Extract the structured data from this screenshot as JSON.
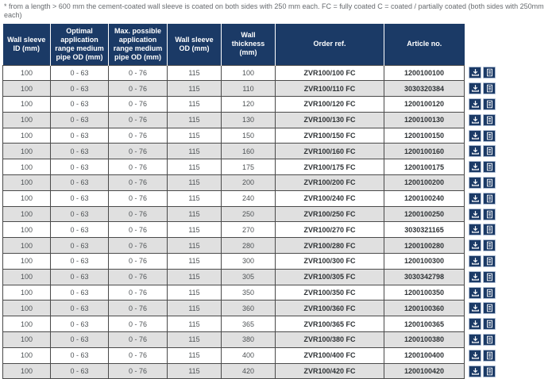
{
  "note": "* from a length > 600 mm the cement-coated wall sleeve is coated on both sides with 250 mm each. FC = fully coated C = coated / partially coated (both sides with 250mm each)",
  "colors": {
    "header_bg": "#1b3a66",
    "row_alt_bg": "#e0e0e0",
    "row_bg": "#ffffff",
    "border": "#4a4a4a",
    "icon_bg": "#1b3a66"
  },
  "table": {
    "headers": [
      "Wall sleeve ID (mm)",
      "Optimal application range medium pipe OD (mm)",
      "Max. possible application range medium pipe OD (mm)",
      "Wall sleeve OD (mm)",
      "Wall thickness (mm)",
      "Order ref.",
      "Article no."
    ],
    "row_actions": [
      "download",
      "document"
    ],
    "rows": [
      [
        "100",
        "0 - 63",
        "0 - 76",
        "115",
        "100",
        "ZVR100/100 FC",
        "1200100100"
      ],
      [
        "100",
        "0 - 63",
        "0 - 76",
        "115",
        "110",
        "ZVR100/110 FC",
        "3030320384"
      ],
      [
        "100",
        "0 - 63",
        "0 - 76",
        "115",
        "120",
        "ZVR100/120 FC",
        "1200100120"
      ],
      [
        "100",
        "0 - 63",
        "0 - 76",
        "115",
        "130",
        "ZVR100/130 FC",
        "1200100130"
      ],
      [
        "100",
        "0 - 63",
        "0 - 76",
        "115",
        "150",
        "ZVR100/150 FC",
        "1200100150"
      ],
      [
        "100",
        "0 - 63",
        "0 - 76",
        "115",
        "160",
        "ZVR100/160 FC",
        "1200100160"
      ],
      [
        "100",
        "0 - 63",
        "0 - 76",
        "115",
        "175",
        "ZVR100/175 FC",
        "1200100175"
      ],
      [
        "100",
        "0 - 63",
        "0 - 76",
        "115",
        "200",
        "ZVR100/200 FC",
        "1200100200"
      ],
      [
        "100",
        "0 - 63",
        "0 - 76",
        "115",
        "240",
        "ZVR100/240 FC",
        "1200100240"
      ],
      [
        "100",
        "0 - 63",
        "0 - 76",
        "115",
        "250",
        "ZVR100/250 FC",
        "1200100250"
      ],
      [
        "100",
        "0 - 63",
        "0 - 76",
        "115",
        "270",
        "ZVR100/270 FC",
        "3030321165"
      ],
      [
        "100",
        "0 - 63",
        "0 - 76",
        "115",
        "280",
        "ZVR100/280 FC",
        "1200100280"
      ],
      [
        "100",
        "0 - 63",
        "0 - 76",
        "115",
        "300",
        "ZVR100/300 FC",
        "1200100300"
      ],
      [
        "100",
        "0 - 63",
        "0 - 76",
        "115",
        "305",
        "ZVR100/305 FC",
        "3030342798"
      ],
      [
        "100",
        "0 - 63",
        "0 - 76",
        "115",
        "350",
        "ZVR100/350 FC",
        "1200100350"
      ],
      [
        "100",
        "0 - 63",
        "0 - 76",
        "115",
        "360",
        "ZVR100/360 FC",
        "1200100360"
      ],
      [
        "100",
        "0 - 63",
        "0 - 76",
        "115",
        "365",
        "ZVR100/365 FC",
        "1200100365"
      ],
      [
        "100",
        "0 - 63",
        "0 - 76",
        "115",
        "380",
        "ZVR100/380 FC",
        "1200100380"
      ],
      [
        "100",
        "0 - 63",
        "0 - 76",
        "115",
        "400",
        "ZVR100/400 FC",
        "1200100400"
      ],
      [
        "100",
        "0 - 63",
        "0 - 76",
        "115",
        "420",
        "ZVR100/420 FC",
        "1200100420"
      ]
    ]
  }
}
